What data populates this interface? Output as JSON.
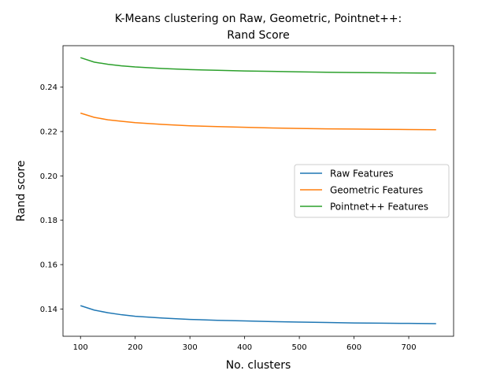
{
  "chart_data": {
    "type": "line",
    "title_line1": "K-Means clustering on Raw, Geometric, Pointnet++:",
    "title_line2": "Rand Score",
    "xlabel": "No. clusters",
    "ylabel": "Rand score",
    "xlim": [
      68,
      782
    ],
    "ylim": [
      0.1277,
      0.2587
    ],
    "x_ticks": [
      100,
      200,
      300,
      400,
      500,
      600,
      700
    ],
    "x_tick_labels": [
      "100",
      "200",
      "300",
      "400",
      "500",
      "600",
      "700"
    ],
    "y_ticks": [
      0.14,
      0.16,
      0.18,
      0.2,
      0.22,
      0.24
    ],
    "y_tick_labels": [
      "0.14",
      "0.16",
      "0.18",
      "0.20",
      "0.22",
      "0.24"
    ],
    "grid": false,
    "legend_position": "center-right",
    "x": [
      100,
      125,
      150,
      175,
      200,
      250,
      300,
      350,
      400,
      450,
      500,
      550,
      600,
      650,
      700,
      750
    ],
    "series": [
      {
        "name": "Raw Features",
        "color": "#1f77b4",
        "values": [
          0.1415,
          0.1395,
          0.1383,
          0.1374,
          0.1367,
          0.1359,
          0.1353,
          0.1349,
          0.1346,
          0.1343,
          0.1341,
          0.1339,
          0.1337,
          0.1336,
          0.1335,
          0.1334
        ]
      },
      {
        "name": "Geometric Features",
        "color": "#ff7f0e",
        "values": [
          0.2283,
          0.2264,
          0.2253,
          0.2246,
          0.224,
          0.2232,
          0.2226,
          0.2222,
          0.2219,
          0.2216,
          0.2214,
          0.2212,
          0.2211,
          0.221,
          0.2209,
          0.2208
        ]
      },
      {
        "name": "Pointnet++ Features",
        "color": "#2ca02c",
        "values": [
          0.2533,
          0.2513,
          0.2503,
          0.2496,
          0.2491,
          0.2484,
          0.2479,
          0.2476,
          0.2473,
          0.2471,
          0.2469,
          0.2467,
          0.2466,
          0.2465,
          0.2464,
          0.2463
        ]
      }
    ]
  }
}
